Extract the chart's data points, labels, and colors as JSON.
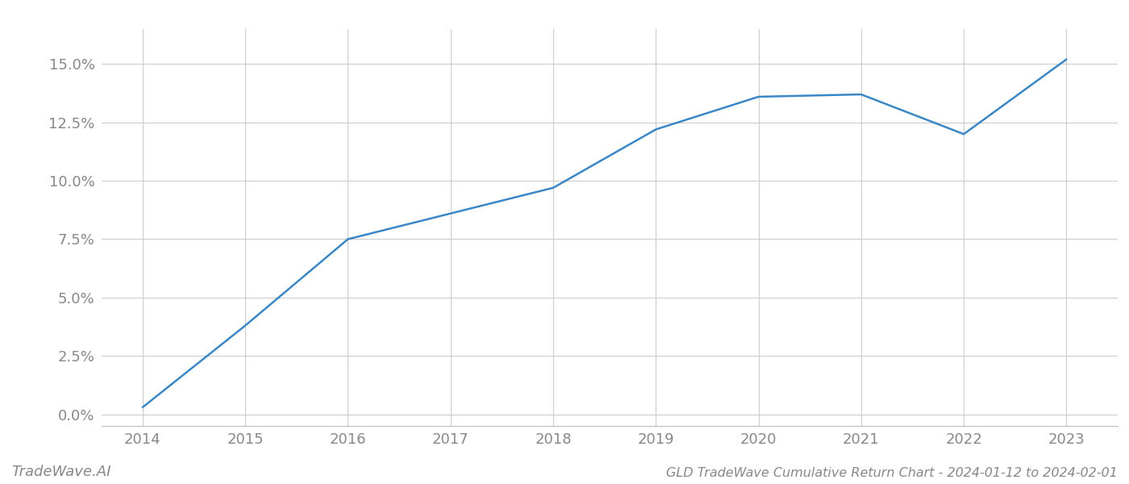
{
  "x_years": [
    2014,
    2015,
    2016,
    2017,
    2018,
    2019,
    2020,
    2021,
    2022,
    2023
  ],
  "y_values": [
    0.003,
    0.038,
    0.075,
    0.086,
    0.097,
    0.122,
    0.136,
    0.137,
    0.12,
    0.152
  ],
  "line_color": "#3a87c8",
  "line_width": 1.8,
  "background_color": "#ffffff",
  "grid_color": "#cccccc",
  "title": "GLD TradeWave Cumulative Return Chart - 2024-01-12 to 2024-02-01",
  "watermark": "TradeWave.AI",
  "ylim": [
    -0.005,
    0.165
  ],
  "xlim": [
    2013.6,
    2023.5
  ],
  "ytick_values": [
    0.0,
    0.025,
    0.05,
    0.075,
    0.1,
    0.125,
    0.15
  ],
  "ytick_labels": [
    "0.0%",
    "2.5%",
    "5.0%",
    "7.5%",
    "10.0%",
    "12.5%",
    "15.0%"
  ],
  "xtick_values": [
    2014,
    2015,
    2016,
    2017,
    2018,
    2019,
    2020,
    2021,
    2022,
    2023
  ],
  "tick_label_color": "#888888",
  "tick_fontsize": 13,
  "title_fontsize": 11.5,
  "watermark_fontsize": 13
}
